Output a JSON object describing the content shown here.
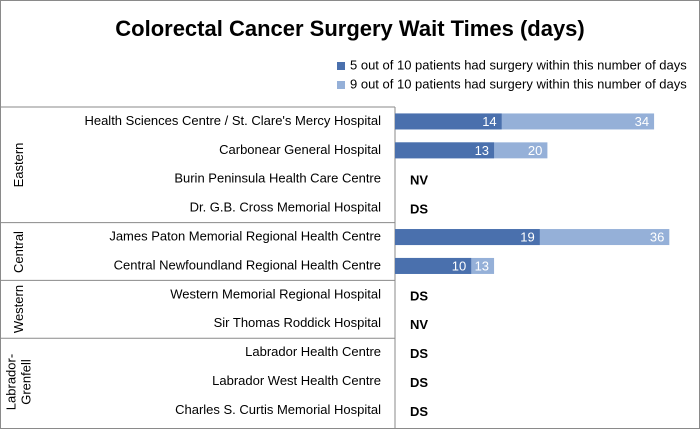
{
  "chart_data": {
    "type": "bar",
    "orientation": "horizontal",
    "layout": "overlap",
    "title": "Colorectal Cancer Surgery Wait Times (days)",
    "categories": [
      "Health Sciences Centre / St. Clare's Mercy Hospital",
      "Carbonear General Hospital",
      "Burin Peninsula Health Care Centre",
      "Dr. G.B. Cross Memorial Hospital",
      "James Paton Memorial Regional Health Centre",
      "Central Newfoundland Regional Health Centre",
      "Western Memorial Regional Hospital",
      "Sir Thomas Roddick Hospital",
      "Labrador Health Centre",
      "Labrador West Health Centre",
      "Charles S. Curtis Memorial Hospital"
    ],
    "category_groups": [
      "Eastern",
      "Eastern",
      "Eastern",
      "Eastern",
      "Central",
      "Central",
      "Western",
      "Western",
      "Labrador-Grenfell",
      "Labrador-Grenfell",
      "Labrador-Grenfell"
    ],
    "value_notes": [
      null,
      null,
      "NV",
      "DS",
      null,
      null,
      "DS",
      "NV",
      "DS",
      "DS",
      "DS"
    ],
    "series": [
      {
        "name": "5 out of 10 patients had surgery within this number of days",
        "color": "#4a70ad",
        "values": [
          14,
          13,
          null,
          null,
          19,
          10,
          null,
          null,
          null,
          null,
          null
        ]
      },
      {
        "name": "9 out of 10 patients had surgery within this number of days",
        "color": "#95b0d8",
        "values": [
          34,
          20,
          null,
          null,
          36,
          13,
          null,
          null,
          null,
          null,
          null
        ]
      }
    ]
  }
}
